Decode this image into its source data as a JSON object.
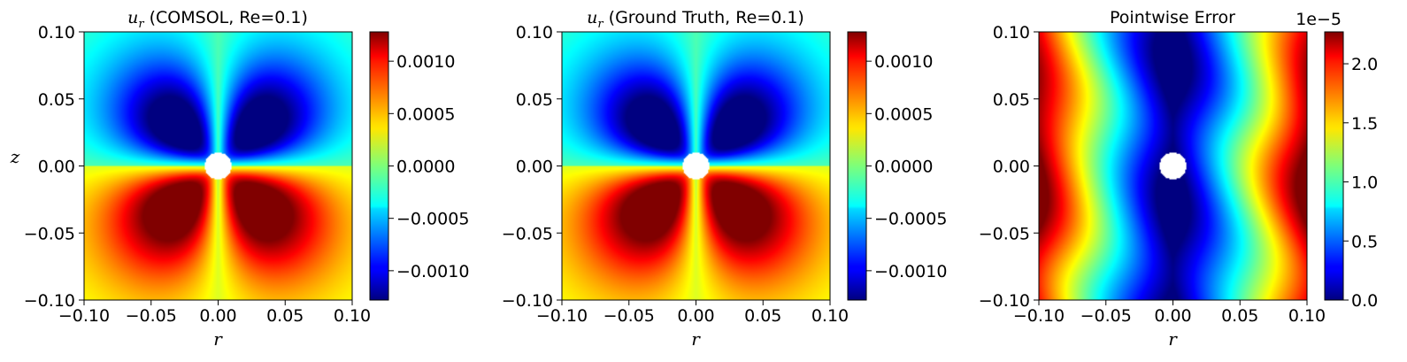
{
  "chart_data": [
    {
      "type": "heatmap",
      "title_var": "u",
      "title_sub": "r",
      "title_rest": " (COMSOL, Re=0.1)",
      "xlabel": "r",
      "ylabel": "z",
      "xlim": [
        -0.1,
        0.1
      ],
      "ylim": [
        -0.1,
        0.1
      ],
      "xticks": [
        "−0.10",
        "−0.05",
        "0.00",
        "0.05",
        "0.10"
      ],
      "yticks": [
        "0.10",
        "0.05",
        "0.00",
        "−0.05",
        "−0.10"
      ],
      "colorbar": {
        "range": [
          -0.00128,
          0.00128
        ],
        "ticks": [
          0.001,
          0.0005,
          0.0,
          -0.0005,
          -0.001
        ],
        "tick_labels": [
          "0.0010",
          "0.0005",
          "0.0000",
          "−0.0005",
          "−0.0010"
        ],
        "colormap": "jet"
      },
      "field": "velocity_quadrupole",
      "obstacle_radius": 0.01
    },
    {
      "type": "heatmap",
      "title_var": "u",
      "title_sub": "r",
      "title_rest": " (Ground Truth, Re=0.1)",
      "xlabel": "r",
      "ylabel": "",
      "xlim": [
        -0.1,
        0.1
      ],
      "ylim": [
        -0.1,
        0.1
      ],
      "xticks": [
        "−0.10",
        "−0.05",
        "0.00",
        "0.05",
        "0.10"
      ],
      "yticks": [
        "0.10",
        "0.05",
        "0.00",
        "−0.05",
        "−0.10"
      ],
      "colorbar": {
        "range": [
          -0.00128,
          0.00128
        ],
        "ticks": [
          0.001,
          0.0005,
          0.0,
          -0.0005,
          -0.001
        ],
        "tick_labels": [
          "0.0010",
          "0.0005",
          "0.0000",
          "−0.0005",
          "−0.0010"
        ],
        "colormap": "jet"
      },
      "field": "velocity_quadrupole",
      "obstacle_radius": 0.01
    },
    {
      "type": "heatmap",
      "title": "Pointwise Error",
      "xlabel": "r",
      "ylabel": "",
      "xlim": [
        -0.1,
        0.1
      ],
      "ylim": [
        -0.1,
        0.1
      ],
      "xticks": [
        "−0.10",
        "−0.05",
        "0.00",
        "0.05",
        "0.10"
      ],
      "yticks": [
        "0.10",
        "0.05",
        "0.00",
        "−0.05",
        "−0.10"
      ],
      "colorbar": {
        "range": [
          0.0,
          2.27
        ],
        "ticks": [
          2.0,
          1.5,
          1.0,
          0.5,
          0.0
        ],
        "tick_labels": [
          "2.0",
          "1.5",
          "1.0",
          "0.5",
          "0.0"
        ],
        "offset_text": "1e−5",
        "colormap": "jet"
      },
      "field": "error_abs_r",
      "obstacle_radius": 0.01
    }
  ]
}
